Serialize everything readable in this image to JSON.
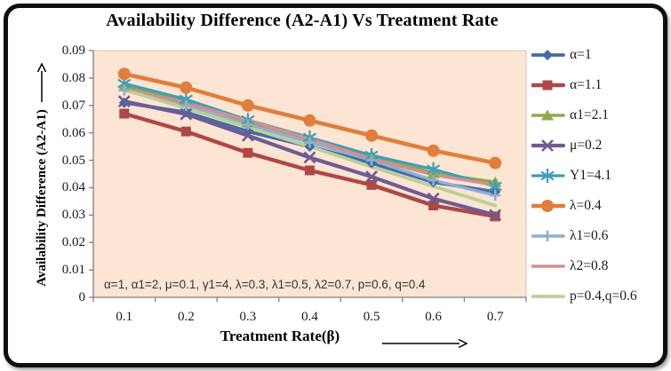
{
  "chart": {
    "title": "Availability Difference (A2-A1) Vs Treatment Rate",
    "x_axis": {
      "title": "Treatment Rate(β)"
    },
    "y_axis": {
      "title": "Availability Difference (A2-A1)"
    },
    "annotation": "α=1, α1=2, μ=0.1, γ1=4, λ=0.3, λ1=0.5, λ2=0.7, p=0.6, q=0.4"
  },
  "colors": {
    "plot_bg": "#FCE5D3",
    "frame_border": "#0F0F0F",
    "axis_line": "#808080",
    "tick_text": "#1A1A1A"
  },
  "chart_data": {
    "type": "line",
    "title": "Availability Difference (A2-A1) Vs Treatment Rate",
    "xlabel": "Treatment Rate(β)",
    "ylabel": "Availability Difference (A2-A1)",
    "x": [
      0.1,
      0.2,
      0.3,
      0.4,
      0.5,
      0.6,
      0.7
    ],
    "x_tick_labels": [
      "0.1",
      "0.2",
      "0.3",
      "0.4",
      "0.5",
      "0.6",
      "0.7"
    ],
    "y_ticks": [
      "0",
      "0.01",
      "0.02",
      "0.03",
      "0.04",
      "0.05",
      "0.06",
      "0.07",
      "0.08",
      "0.09"
    ],
    "ylim": [
      0,
      0.09
    ],
    "grid": false,
    "legend_position": "right",
    "annotation": "α=1, α1=2, μ=0.1, γ1=4, λ=0.3, λ1=0.5, λ2=0.7, p=0.6, q=0.4",
    "series": [
      {
        "name": "alpha-1",
        "label": "α=1",
        "color": "#3F6DA8",
        "marker": "diamond",
        "values": [
          0.071,
          0.0675,
          0.0605,
          0.055,
          0.049,
          0.042,
          0.0385
        ]
      },
      {
        "name": "alpha-1.1",
        "label": "α=1.1",
        "color": "#AE4844",
        "marker": "square",
        "values": [
          0.067,
          0.0605,
          0.0527,
          0.0463,
          0.041,
          0.0335,
          0.0295
        ]
      },
      {
        "name": "alpha1-2.1",
        "label": "α1=2.1",
        "color": "#8FAA4B",
        "marker": "triangle",
        "values": [
          0.077,
          0.0718,
          0.0638,
          0.0577,
          0.0518,
          0.0453,
          0.042
        ]
      },
      {
        "name": "mu-0.2",
        "label": "μ=0.2",
        "color": "#6F5B94",
        "marker": "x",
        "values": [
          0.0715,
          0.0668,
          0.059,
          0.051,
          0.044,
          0.036,
          0.03
        ]
      },
      {
        "name": "gamma1-4.1",
        "label": "Υ1=4.1",
        "color": "#3E9FB8",
        "marker": "asterisk",
        "values": [
          0.078,
          0.0722,
          0.0647,
          0.0583,
          0.0518,
          0.0467,
          0.0405
        ]
      },
      {
        "name": "lambda-0.4",
        "label": "λ=0.4",
        "color": "#E07E3C",
        "marker": "circle",
        "values": [
          0.0815,
          0.0765,
          0.07,
          0.0645,
          0.059,
          0.0535,
          0.049
        ]
      },
      {
        "name": "lambda1-0.6",
        "label": "λ1=0.6",
        "color": "#8FAFD4",
        "marker": "plus",
        "values": [
          0.0755,
          0.0699,
          0.063,
          0.0565,
          0.05,
          0.0427,
          0.0372
        ]
      },
      {
        "name": "lambda2-0.8",
        "label": "λ2=0.8",
        "color": "#D0908D",
        "marker": "none",
        "values": [
          0.076,
          0.0709,
          0.0645,
          0.0578,
          0.0505,
          0.0447,
          0.041
        ]
      },
      {
        "name": "p-0.4-q-0.6",
        "label": "p=0.4,q=0.6",
        "color": "#BBCF96",
        "marker": "none",
        "values": [
          0.0757,
          0.069,
          0.062,
          0.055,
          0.0476,
          0.0405,
          0.0335
        ]
      }
    ]
  }
}
